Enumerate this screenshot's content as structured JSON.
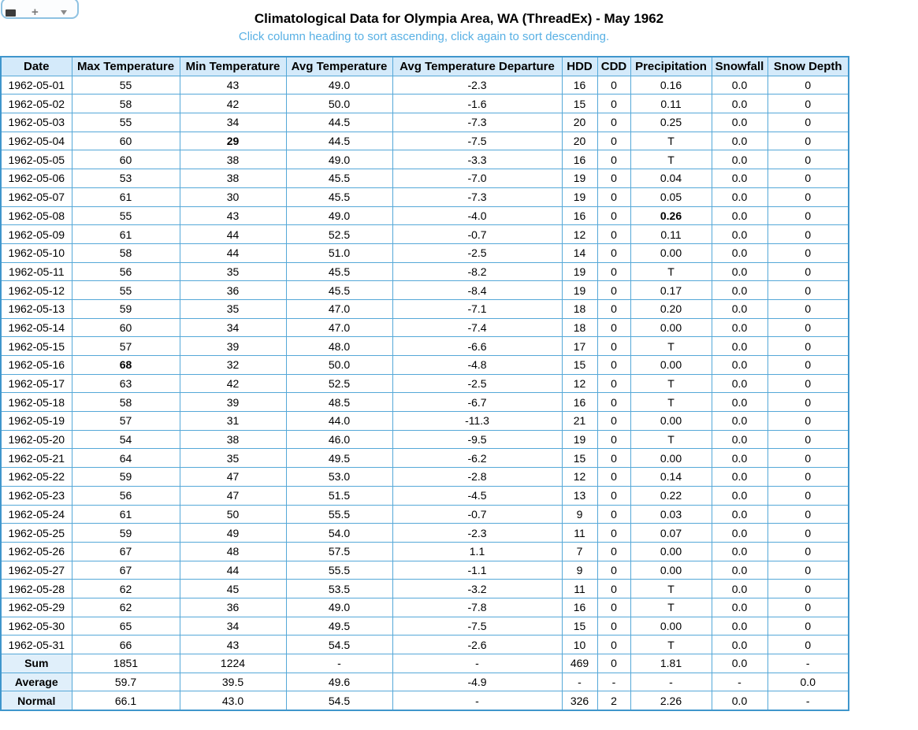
{
  "toolbar": {
    "icons": [
      "printer-icon",
      "add-icon",
      "dropdown-caret-icon"
    ]
  },
  "header": {
    "title": "Climatological Data for Olympia Area, WA (ThreadEx) - May 1962",
    "subtitle": "Click column heading to sort ascending, click again to sort descending."
  },
  "colors": {
    "header_bg": "#d4eafa",
    "summary_label_bg": "#e0effa",
    "table_border": "#55a8d8",
    "subtitle_text": "#58b0e4",
    "record_high_red": "#ff0000",
    "record_low_blue": "#0000e6",
    "precip_green": "#007a00"
  },
  "table": {
    "columns": [
      "Date",
      "Max Temperature",
      "Min Temperature",
      "Avg Temperature",
      "Avg Temperature Departure",
      "HDD",
      "CDD",
      "Precipitation",
      "Snowfall",
      "Snow Depth"
    ],
    "rows": [
      [
        "1962-05-01",
        "55",
        "43",
        "49.0",
        "-2.3",
        "16",
        "0",
        "0.16",
        "0.0",
        "0"
      ],
      [
        "1962-05-02",
        "58",
        "42",
        "50.0",
        "-1.6",
        "15",
        "0",
        "0.11",
        "0.0",
        "0"
      ],
      [
        "1962-05-03",
        "55",
        "34",
        "44.5",
        "-7.3",
        "20",
        "0",
        "0.25",
        "0.0",
        "0"
      ],
      [
        "1962-05-04",
        "60",
        {
          "v": "29",
          "hl": "blue"
        },
        "44.5",
        "-7.5",
        "20",
        "0",
        "T",
        "0.0",
        "0"
      ],
      [
        "1962-05-05",
        "60",
        "38",
        "49.0",
        "-3.3",
        "16",
        "0",
        "T",
        "0.0",
        "0"
      ],
      [
        "1962-05-06",
        "53",
        "38",
        "45.5",
        "-7.0",
        "19",
        "0",
        "0.04",
        "0.0",
        "0"
      ],
      [
        "1962-05-07",
        "61",
        "30",
        "45.5",
        "-7.3",
        "19",
        "0",
        "0.05",
        "0.0",
        "0"
      ],
      [
        "1962-05-08",
        "55",
        "43",
        "49.0",
        "-4.0",
        "16",
        "0",
        {
          "v": "0.26",
          "hl": "green"
        },
        "0.0",
        "0"
      ],
      [
        "1962-05-09",
        "61",
        "44",
        "52.5",
        "-0.7",
        "12",
        "0",
        "0.11",
        "0.0",
        "0"
      ],
      [
        "1962-05-10",
        "58",
        "44",
        "51.0",
        "-2.5",
        "14",
        "0",
        "0.00",
        "0.0",
        "0"
      ],
      [
        "1962-05-11",
        "56",
        "35",
        "45.5",
        "-8.2",
        "19",
        "0",
        "T",
        "0.0",
        "0"
      ],
      [
        "1962-05-12",
        "55",
        "36",
        "45.5",
        "-8.4",
        "19",
        "0",
        "0.17",
        "0.0",
        "0"
      ],
      [
        "1962-05-13",
        "59",
        "35",
        "47.0",
        "-7.1",
        "18",
        "0",
        "0.20",
        "0.0",
        "0"
      ],
      [
        "1962-05-14",
        "60",
        "34",
        "47.0",
        "-7.4",
        "18",
        "0",
        "0.00",
        "0.0",
        "0"
      ],
      [
        "1962-05-15",
        "57",
        "39",
        "48.0",
        "-6.6",
        "17",
        "0",
        "T",
        "0.0",
        "0"
      ],
      [
        "1962-05-16",
        {
          "v": "68",
          "hl": "red"
        },
        "32",
        "50.0",
        "-4.8",
        "15",
        "0",
        "0.00",
        "0.0",
        "0"
      ],
      [
        "1962-05-17",
        "63",
        "42",
        "52.5",
        "-2.5",
        "12",
        "0",
        "T",
        "0.0",
        "0"
      ],
      [
        "1962-05-18",
        "58",
        "39",
        "48.5",
        "-6.7",
        "16",
        "0",
        "T",
        "0.0",
        "0"
      ],
      [
        "1962-05-19",
        "57",
        "31",
        "44.0",
        "-11.3",
        "21",
        "0",
        "0.00",
        "0.0",
        "0"
      ],
      [
        "1962-05-20",
        "54",
        "38",
        "46.0",
        "-9.5",
        "19",
        "0",
        "T",
        "0.0",
        "0"
      ],
      [
        "1962-05-21",
        "64",
        "35",
        "49.5",
        "-6.2",
        "15",
        "0",
        "0.00",
        "0.0",
        "0"
      ],
      [
        "1962-05-22",
        "59",
        "47",
        "53.0",
        "-2.8",
        "12",
        "0",
        "0.14",
        "0.0",
        "0"
      ],
      [
        "1962-05-23",
        "56",
        "47",
        "51.5",
        "-4.5",
        "13",
        "0",
        "0.22",
        "0.0",
        "0"
      ],
      [
        "1962-05-24",
        "61",
        "50",
        "55.5",
        "-0.7",
        "9",
        "0",
        "0.03",
        "0.0",
        "0"
      ],
      [
        "1962-05-25",
        "59",
        "49",
        "54.0",
        "-2.3",
        "11",
        "0",
        "0.07",
        "0.0",
        "0"
      ],
      [
        "1962-05-26",
        "67",
        "48",
        "57.5",
        "1.1",
        "7",
        "0",
        "0.00",
        "0.0",
        "0"
      ],
      [
        "1962-05-27",
        "67",
        "44",
        "55.5",
        "-1.1",
        "9",
        "0",
        "0.00",
        "0.0",
        "0"
      ],
      [
        "1962-05-28",
        "62",
        "45",
        "53.5",
        "-3.2",
        "11",
        "0",
        "T",
        "0.0",
        "0"
      ],
      [
        "1962-05-29",
        "62",
        "36",
        "49.0",
        "-7.8",
        "16",
        "0",
        "T",
        "0.0",
        "0"
      ],
      [
        "1962-05-30",
        "65",
        "34",
        "49.5",
        "-7.5",
        "15",
        "0",
        "0.00",
        "0.0",
        "0"
      ],
      [
        "1962-05-31",
        "66",
        "43",
        "54.5",
        "-2.6",
        "10",
        "0",
        "T",
        "0.0",
        "0"
      ]
    ],
    "summary_rows": [
      {
        "label": "Sum",
        "cells": [
          "1851",
          "1224",
          "-",
          "-",
          "469",
          "0",
          "1.81",
          "0.0",
          "-"
        ]
      },
      {
        "label": "Average",
        "cells": [
          "59.7",
          "39.5",
          "49.6",
          "-4.9",
          "-",
          "-",
          "-",
          "-",
          "0.0"
        ]
      },
      {
        "label": "Normal",
        "cells": [
          "66.1",
          "43.0",
          "54.5",
          "-",
          "326",
          "2",
          "2.26",
          "0.0",
          "-"
        ]
      }
    ]
  }
}
